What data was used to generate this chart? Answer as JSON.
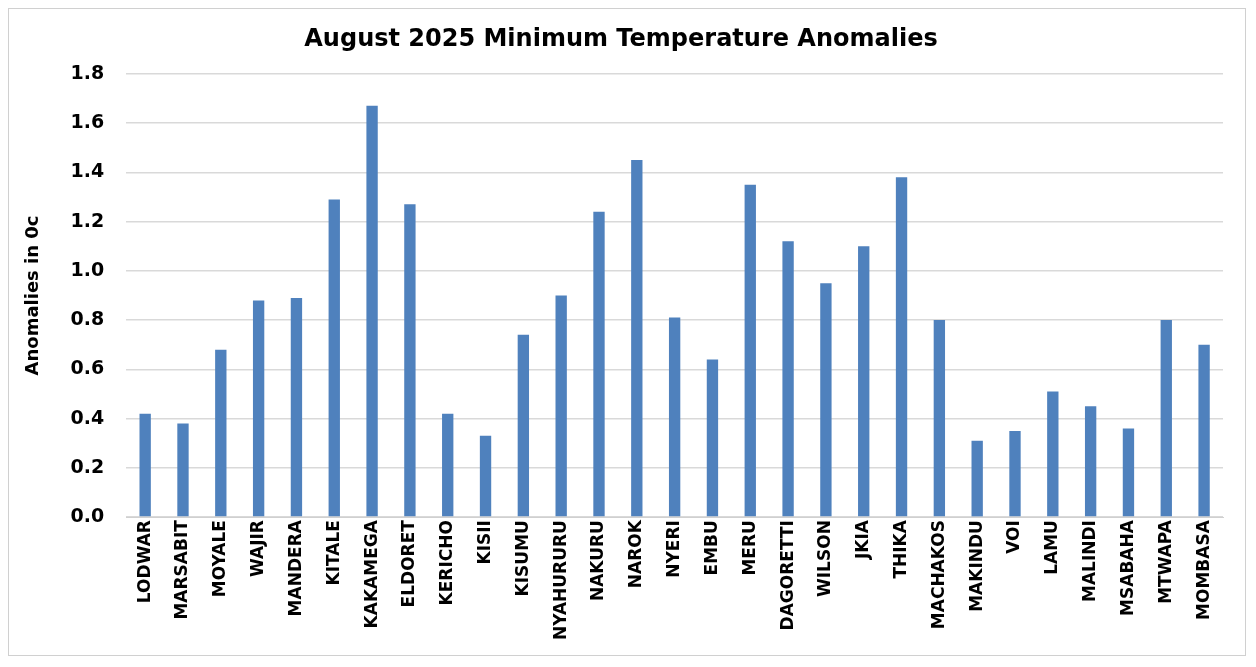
{
  "chart_data": {
    "type": "bar",
    "title": "August 2025 Minimum Temperature Anomalies",
    "ylabel": "Anomalies in 0c",
    "categories": [
      "LODWAR",
      "MARSABIT",
      "MOYALE",
      "WAJIR",
      "MANDERA",
      "KITALE",
      "KAKAMEGA",
      "ELDORET",
      "KERICHO",
      "KISII",
      "KISUMU",
      "NYAHURURU",
      "NAKURU",
      "NAROK",
      "NYERI",
      "EMBU",
      "MERU",
      "DAGORETTI",
      "WILSON",
      "JKIA",
      "THIKA",
      "MACHAKOS",
      "MAKINDU",
      "VOI",
      "LAMU",
      "MALINDI",
      "MSABAHA",
      "MTWAPA",
      "MOMBASA"
    ],
    "values": [
      0.42,
      0.38,
      0.68,
      0.88,
      0.89,
      1.29,
      1.67,
      1.27,
      0.42,
      0.33,
      0.74,
      0.9,
      1.24,
      1.45,
      0.81,
      0.64,
      1.35,
      1.12,
      0.95,
      1.1,
      1.38,
      0.8,
      0.31,
      0.35,
      0.51,
      0.45,
      0.36,
      0.8,
      0.7
    ],
    "color": "#4f81bd",
    "ylim": [
      0,
      1.8
    ],
    "yticks": [
      {
        "value": 0,
        "label": "0.0"
      },
      0.2,
      0.4,
      0.6,
      0.8,
      {
        "value": 1,
        "label": "1.0"
      },
      1.2,
      1.4,
      1.6,
      1.8
    ],
    "grid": "y"
  }
}
